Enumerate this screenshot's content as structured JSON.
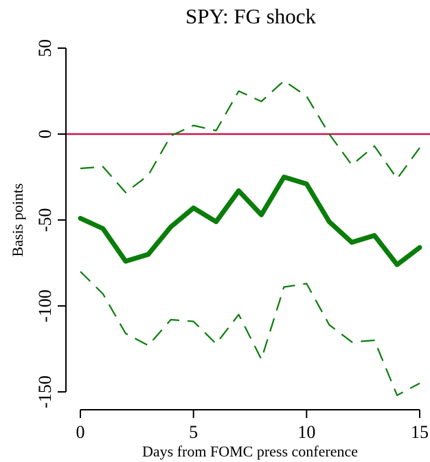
{
  "chart_data": {
    "type": "line",
    "title": "SPY: FG shock",
    "xlabel": "Days from FOMC press conference",
    "ylabel": "Basis points",
    "xlim": [
      0,
      15
    ],
    "ylim": [
      -150,
      50
    ],
    "xticks": [
      0,
      5,
      10,
      15
    ],
    "yticks": [
      -150,
      -100,
      -50,
      0,
      50
    ],
    "reference_line": {
      "y": 0,
      "color": "#c8174b"
    },
    "x": [
      0,
      1,
      2,
      3,
      4,
      5,
      6,
      7,
      8,
      9,
      10,
      11,
      12,
      13,
      14,
      15
    ],
    "series": [
      {
        "style": "solid-thick",
        "color": "#0a7d0a",
        "values": [
          -49,
          -55,
          -74,
          -70,
          -54,
          -43,
          -51,
          -33,
          -47,
          -25,
          -29,
          -51,
          -63,
          -59,
          -76,
          -66
        ]
      },
      {
        "style": "dashed",
        "color": "#0a7d0a",
        "values": [
          -20,
          -19,
          -34,
          -24,
          -1,
          5,
          2,
          25,
          19,
          31,
          22,
          0,
          -18,
          -7,
          -26,
          -8
        ]
      },
      {
        "style": "dashed",
        "color": "#0a7d0a",
        "values": [
          -80,
          -93,
          -116,
          -123,
          -108,
          -109,
          -122,
          -105,
          -131,
          -89,
          -87,
          -111,
          -121,
          -120,
          -152,
          -145
        ]
      }
    ]
  }
}
